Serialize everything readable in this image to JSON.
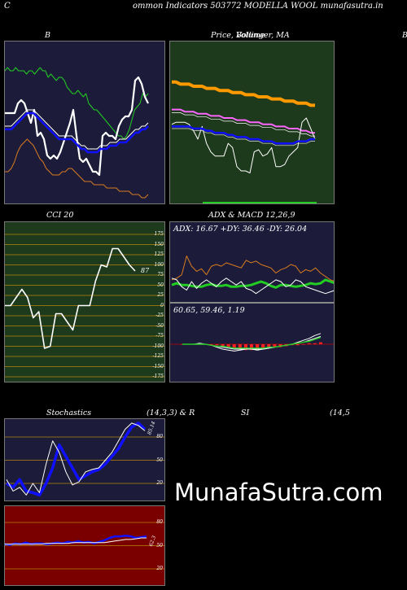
{
  "page": {
    "corner_left": "C",
    "title": "ommon  Indicators 503772  MODELLA WOOL  munafasutra.in",
    "watermark": "MunafaSutra.com"
  },
  "colors": {
    "navy": "#1c1c3a",
    "green_bg": "#1e3a1c",
    "red_bg": "#7a0000",
    "orange": "#d87a20",
    "green_line": "#22cc22",
    "blue": "#1010ff",
    "white": "#ffffff",
    "gridline": "#b8860b"
  },
  "labels": {
    "b": "B",
    "price_title": "Price,  Bollinger,  MA",
    "price_overlap": "Volume",
    "edge_right": "B",
    "cci": "CCI 20",
    "adx_macd": "ADX  & MACD 12,26,9",
    "adx_values": "ADX: 16.67  +DY: 36.46  -DY: 26.04",
    "macd_values": "60.65,  59.46,  1.19",
    "stoch": "Stochastics",
    "stoch_params": "(14,3,3) & R",
    "si": "SI",
    "si_params": "(14,5"
  },
  "chart_data": [
    {
      "type": "line",
      "name": "bollinger",
      "title": "B",
      "series": [
        {
          "color": "#22cc22",
          "values": [
            40,
            41,
            40,
            40,
            41,
            40,
            40,
            40,
            39,
            40,
            40,
            39,
            40,
            41,
            40,
            40,
            38,
            39,
            38,
            37,
            38,
            38,
            37,
            35,
            34,
            33,
            33,
            34,
            33,
            32,
            33,
            30,
            29,
            28,
            28,
            27,
            26,
            25,
            24,
            23,
            22,
            21,
            20,
            20,
            19,
            20,
            22,
            25,
            28,
            29,
            30,
            33,
            32,
            33
          ]
        },
        {
          "color": "#ffffff",
          "values": [
            27,
            27,
            27,
            27,
            30,
            31,
            30,
            27,
            24,
            28,
            20,
            21,
            19,
            14,
            13,
            14,
            13,
            15,
            18,
            21,
            24,
            28,
            20,
            13,
            12,
            13,
            11,
            9,
            9,
            8,
            20,
            21,
            20,
            20,
            19,
            23,
            25,
            26,
            26,
            28,
            37,
            38,
            36,
            32,
            30
          ]
        },
        {
          "color": "#1010ff",
          "values": [
            22,
            22,
            22,
            23,
            24,
            25,
            26,
            27,
            27,
            27,
            26,
            25,
            24,
            23,
            22,
            21,
            20,
            19,
            19,
            19,
            19,
            19,
            18,
            17,
            16,
            16,
            15,
            15,
            15,
            15,
            16,
            16,
            16,
            17,
            17,
            17,
            18,
            18,
            18,
            19,
            20,
            21,
            21,
            22,
            22,
            23
          ]
        },
        {
          "color": "#ffffff",
          "values": [
            23,
            23,
            23,
            24,
            25,
            26,
            27,
            28,
            28,
            28,
            27,
            26,
            25,
            24,
            23,
            22,
            21,
            20,
            20,
            20,
            20,
            20,
            19,
            18,
            17,
            17,
            16,
            16,
            16,
            16,
            17,
            17,
            17,
            18,
            18,
            18,
            19,
            19,
            19,
            20,
            21,
            22,
            22,
            23,
            23,
            24
          ]
        },
        {
          "color": "#d87a20",
          "values": [
            9,
            9,
            10,
            12,
            15,
            17,
            18,
            19,
            18,
            17,
            15,
            13,
            12,
            10,
            9,
            8,
            8,
            8,
            9,
            9,
            10,
            10,
            9,
            8,
            7,
            6,
            6,
            6,
            5,
            5,
            5,
            5,
            4,
            4,
            4,
            4,
            3,
            3,
            3,
            3,
            2,
            2,
            2,
            1,
            1,
            2
          ]
        }
      ]
    },
    {
      "type": "line",
      "name": "price",
      "title": "Price,  Bollinger,  MA",
      "series": [
        {
          "color": "#ff9900",
          "values": [
            57,
            57,
            56,
            56,
            56,
            55,
            55,
            55,
            54,
            54,
            54,
            53,
            53,
            53,
            52,
            52,
            52,
            51,
            51,
            51,
            50,
            50,
            50,
            49,
            49,
            49,
            48,
            48,
            48,
            47,
            47,
            47,
            46,
            46
          ]
        },
        {
          "color": "#ff66ff",
          "values": [
            44,
            44,
            44,
            43,
            43,
            43,
            42,
            42,
            42,
            41,
            41,
            41,
            40,
            40,
            40,
            39,
            39,
            39,
            38,
            38,
            38,
            37,
            37,
            37,
            36,
            36,
            36,
            35,
            35,
            35,
            34,
            34,
            33,
            33
          ]
        },
        {
          "color": "#ffffff",
          "values": [
            37,
            38,
            38,
            38,
            37,
            34,
            30,
            36,
            28,
            24,
            22,
            22,
            22,
            28,
            26,
            17,
            15,
            15,
            14,
            24,
            25,
            22,
            23,
            26,
            17,
            17,
            18,
            22,
            24,
            26,
            38,
            40,
            35,
            30
          ]
        },
        {
          "color": "#1010ff",
          "values": [
            36,
            36,
            36,
            36,
            36,
            35,
            35,
            35,
            34,
            34,
            33,
            33,
            33,
            32,
            32,
            31,
            31,
            31,
            30,
            30,
            30,
            29,
            29,
            29,
            28,
            28,
            28,
            28,
            28,
            29,
            29,
            29,
            30,
            30
          ]
        },
        {
          "color": "#22cc22",
          "values": [
            0,
            0,
            0,
            0,
            0,
            0,
            0,
            0,
            0,
            0,
            0,
            0,
            0,
            0,
            0,
            0,
            0,
            0,
            0,
            0,
            0,
            0,
            0,
            0,
            0,
            0,
            0,
            0,
            0,
            0,
            0,
            0,
            0,
            0
          ]
        }
      ]
    },
    {
      "type": "line",
      "name": "cci",
      "title": "CCI 20",
      "ylim": [
        -175,
        175
      ],
      "ticks": [
        175,
        150,
        125,
        100,
        75,
        50,
        25,
        0,
        -25,
        -50,
        -75,
        -100,
        -125,
        -150,
        -175
      ],
      "last_label": "87",
      "series": [
        {
          "color": "#ffffff",
          "values": [
            0,
            0,
            20,
            40,
            20,
            -30,
            -15,
            -105,
            -100,
            -20,
            -20,
            -40,
            -60,
            0,
            0,
            0,
            60,
            100,
            95,
            140,
            140,
            120,
            100,
            85
          ]
        }
      ]
    },
    {
      "type": "line",
      "name": "adx",
      "title": "ADX: 16.67  +DY: 36.46  -DY: 26.04",
      "series": [
        {
          "color": "#d87a20",
          "values": [
            22,
            24,
            28,
            50,
            38,
            32,
            35,
            28,
            38,
            40,
            38,
            42,
            40,
            38,
            36,
            45,
            42,
            44,
            40,
            38,
            36,
            30,
            34,
            36,
            40,
            38,
            30,
            34,
            32,
            36,
            30,
            26,
            22,
            20
          ]
        },
        {
          "color": "#22cc22",
          "values": [
            16,
            18,
            16,
            16,
            15,
            14,
            14,
            16,
            17,
            15,
            15,
            16,
            14,
            14,
            15,
            15,
            16,
            18,
            20,
            18,
            15,
            13,
            16,
            16,
            15,
            14,
            15,
            16,
            18,
            17,
            18,
            22,
            20,
            18
          ]
        },
        {
          "color": "#ffffff",
          "values": [
            24,
            22,
            14,
            10,
            20,
            12,
            18,
            22,
            18,
            14,
            20,
            24,
            20,
            16,
            20,
            12,
            10,
            6,
            10,
            14,
            18,
            22,
            20,
            14,
            16,
            22,
            20,
            14,
            12,
            10,
            8,
            6,
            8,
            10
          ]
        }
      ]
    },
    {
      "type": "bar",
      "name": "macd",
      "title": "60.65,  59.46,  1.19",
      "values": [
        0,
        0,
        0,
        0,
        0,
        -1,
        -1,
        -2,
        -3,
        -4,
        -5,
        -6,
        -6,
        -5,
        -5,
        -4,
        -3,
        -3,
        -2,
        -1,
        -1,
        0,
        1,
        1,
        2
      ],
      "series": [
        {
          "color": "#ffffff",
          "values": [
            0,
            0,
            0,
            1,
            0,
            -1,
            -3,
            -5,
            -6,
            -7,
            -6,
            -5,
            -5,
            -6,
            -5,
            -4,
            -3,
            -2,
            -1,
            0,
            2,
            4,
            6,
            9,
            11
          ]
        },
        {
          "color": "#ffffff",
          "values": [
            0,
            0,
            0,
            0,
            0,
            -1,
            -2,
            -3,
            -4,
            -5,
            -5,
            -5,
            -5,
            -5,
            -5,
            -4,
            -3,
            -2,
            -1,
            0,
            1,
            2,
            4,
            6,
            8
          ]
        },
        {
          "color": "#22cc22",
          "values": [
            0,
            0,
            0,
            0,
            0,
            -1,
            -2,
            -2,
            -3,
            -4,
            -4,
            -4,
            -4,
            -4,
            -4,
            -3,
            -3,
            -2,
            -1,
            0,
            1,
            2,
            3,
            5,
            7
          ]
        }
      ]
    },
    {
      "type": "line",
      "name": "stochastics",
      "title": "Stochastics",
      "ylim": [
        0,
        100
      ],
      "ticks": [
        80,
        50,
        20
      ],
      "last_label": "85.14",
      "series": [
        {
          "color": "#1010ff",
          "values": [
            20,
            15,
            25,
            10,
            8,
            5,
            20,
            40,
            70,
            55,
            40,
            25,
            30,
            35,
            38,
            45,
            55,
            65,
            80,
            93,
            98,
            90
          ]
        },
        {
          "color": "#ffffff",
          "values": [
            25,
            10,
            15,
            5,
            20,
            8,
            45,
            75,
            60,
            35,
            18,
            22,
            35,
            38,
            40,
            50,
            60,
            75,
            90,
            98,
            95,
            88
          ]
        }
      ]
    },
    {
      "type": "line",
      "name": "rsi",
      "ylim": [
        0,
        100
      ],
      "ticks": [
        80,
        50,
        20
      ],
      "last_label": "62.3",
      "series": [
        {
          "color": "#1010ff",
          "values": [
            52,
            51,
            53,
            52,
            54,
            52,
            53,
            53,
            52,
            53,
            54,
            53,
            55,
            54,
            56,
            54,
            55,
            53,
            55,
            57,
            60,
            62,
            62,
            63,
            62,
            60,
            61,
            62
          ]
        },
        {
          "color": "#ffffff",
          "values": [
            52,
            52,
            52,
            52,
            52,
            52,
            52,
            52,
            53,
            53,
            53,
            53,
            53,
            54,
            54,
            54,
            54,
            54,
            54,
            54,
            55,
            56,
            57,
            58,
            58,
            59,
            60,
            60
          ]
        }
      ]
    }
  ]
}
